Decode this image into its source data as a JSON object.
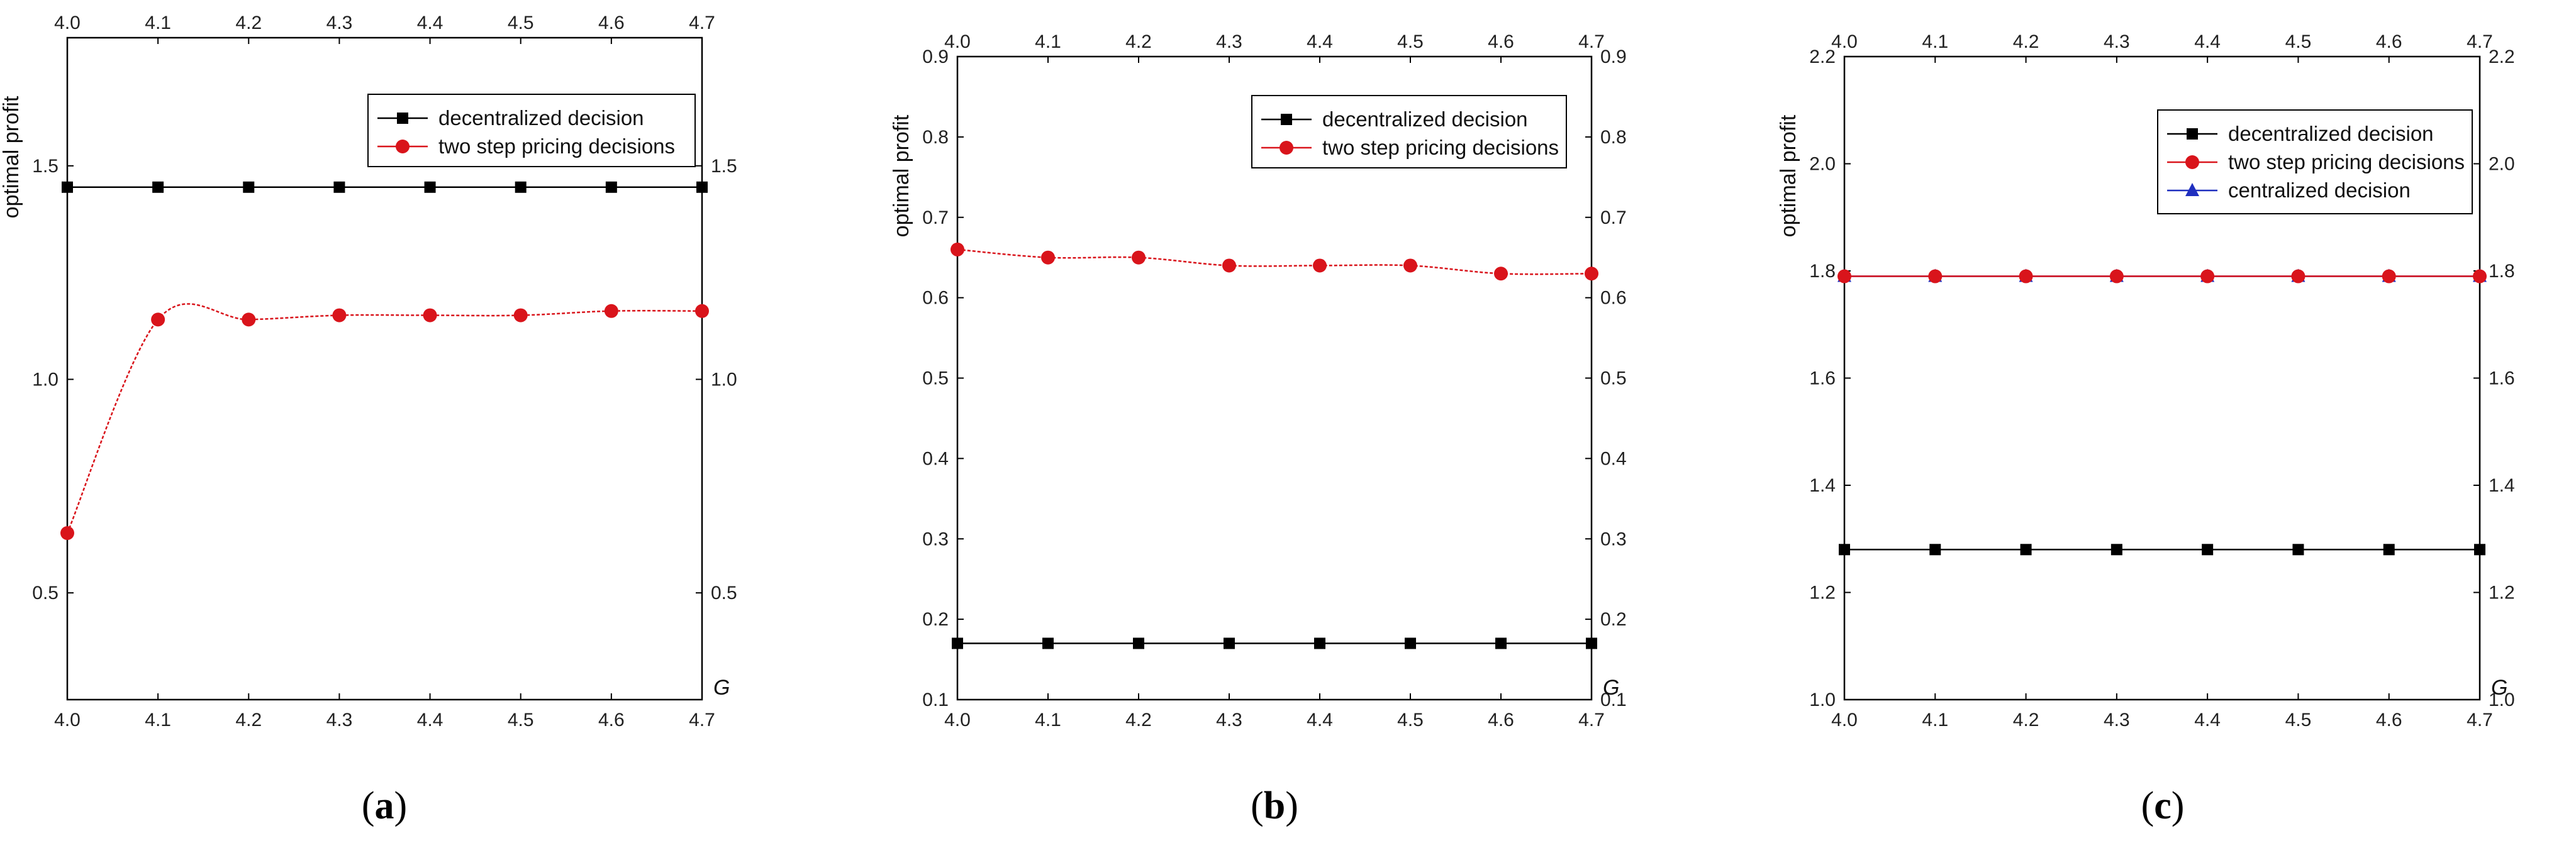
{
  "chart_data": [
    {
      "type": "line",
      "panel_label": "a",
      "x": [
        4.0,
        4.1,
        4.2,
        4.3,
        4.4,
        4.5,
        4.6,
        4.7
      ],
      "x_ticks": [
        "4.0",
        "4.1",
        "4.2",
        "4.3",
        "4.4",
        "4.5",
        "4.6",
        "4.7"
      ],
      "xlim": [
        4.0,
        4.7
      ],
      "ylim": [
        0.25,
        1.8
      ],
      "y_ticks": [
        0.5,
        1.0,
        1.5
      ],
      "y_tick_labels": [
        "0.5",
        "1.0",
        "1.5"
      ],
      "ylabel": "optimal profit",
      "xlabel": "G",
      "legend_position": "top-right",
      "series": [
        {
          "name": "decentralized decision",
          "marker": "square",
          "color": "#000000",
          "smooth": false,
          "values": [
            1.45,
            1.45,
            1.45,
            1.45,
            1.45,
            1.45,
            1.45,
            1.45
          ]
        },
        {
          "name": "two step pricing decisions",
          "marker": "circle",
          "color": "#d9141b",
          "smooth": true,
          "values": [
            0.64,
            1.14,
            1.14,
            1.15,
            1.15,
            1.15,
            1.16,
            1.16
          ]
        }
      ]
    },
    {
      "type": "line",
      "panel_label": "b",
      "x": [
        4.0,
        4.1,
        4.2,
        4.3,
        4.4,
        4.5,
        4.6,
        4.7
      ],
      "x_ticks": [
        "4.0",
        "4.1",
        "4.2",
        "4.3",
        "4.4",
        "4.5",
        "4.6",
        "4.7"
      ],
      "xlim": [
        4.0,
        4.7
      ],
      "ylim": [
        0.1,
        0.9
      ],
      "y_ticks": [
        0.1,
        0.2,
        0.3,
        0.4,
        0.5,
        0.6,
        0.7,
        0.8,
        0.9
      ],
      "y_tick_labels": [
        "0.1",
        "0.2",
        "0.3",
        "0.4",
        "0.5",
        "0.6",
        "0.7",
        "0.8",
        "0.9"
      ],
      "ylabel": "optimal profit",
      "xlabel": "G",
      "legend_position": "top-right",
      "series": [
        {
          "name": "decentralized decision",
          "marker": "square",
          "color": "#000000",
          "smooth": false,
          "values": [
            0.17,
            0.17,
            0.17,
            0.17,
            0.17,
            0.17,
            0.17,
            0.17
          ]
        },
        {
          "name": "two step pricing decisions",
          "marker": "circle",
          "color": "#d9141b",
          "smooth": true,
          "values": [
            0.66,
            0.65,
            0.65,
            0.64,
            0.64,
            0.64,
            0.63,
            0.63
          ]
        }
      ]
    },
    {
      "type": "line",
      "panel_label": "c",
      "x": [
        4.0,
        4.1,
        4.2,
        4.3,
        4.4,
        4.5,
        4.6,
        4.7
      ],
      "x_ticks": [
        "4.0",
        "4.1",
        "4.2",
        "4.3",
        "4.4",
        "4.5",
        "4.6",
        "4.7"
      ],
      "xlim": [
        4.0,
        4.7
      ],
      "ylim": [
        1.0,
        2.2
      ],
      "y_ticks": [
        1.0,
        1.2,
        1.4,
        1.6,
        1.8,
        2.0,
        2.2
      ],
      "y_tick_labels": [
        "1.0",
        "1.2",
        "1.4",
        "1.6",
        "1.8",
        "2.0",
        "2.2"
      ],
      "ylabel": "optimal profit",
      "xlabel": "G",
      "legend_position": "top-right",
      "series": [
        {
          "name": "decentralized decision",
          "marker": "square",
          "color": "#000000",
          "smooth": false,
          "values": [
            1.28,
            1.28,
            1.28,
            1.28,
            1.28,
            1.28,
            1.28,
            1.28
          ]
        },
        {
          "name": "two step pricing decisions",
          "marker": "circle",
          "color": "#d9141b",
          "smooth": false,
          "values": [
            1.79,
            1.79,
            1.79,
            1.79,
            1.79,
            1.79,
            1.79,
            1.79
          ]
        },
        {
          "name": "centralized decision",
          "marker": "triangle",
          "color": "#1f2fbf",
          "smooth": false,
          "values": [
            1.79,
            1.79,
            1.79,
            1.79,
            1.79,
            1.79,
            1.79,
            1.79
          ]
        }
      ]
    }
  ]
}
